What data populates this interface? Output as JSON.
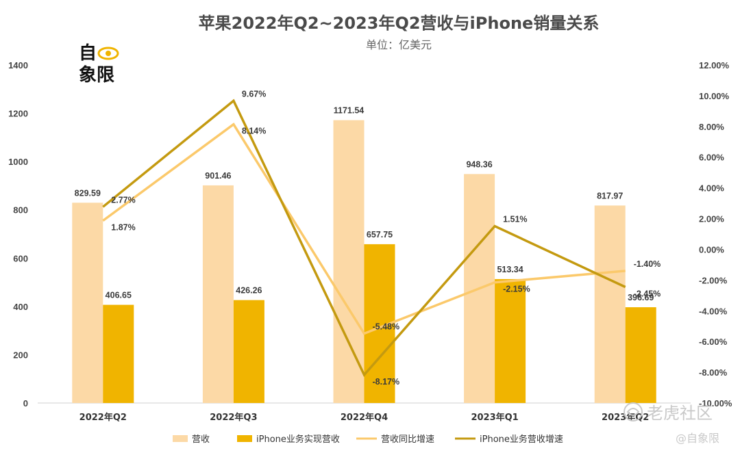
{
  "chart_data": {
    "type": "bar",
    "title": "苹果2022年Q2~2023年Q2营收与iPhone销量关系",
    "subtitle": "单位：亿美元",
    "categories": [
      "2022年Q2",
      "2022年Q3",
      "2022年Q4",
      "2023年Q1",
      "2023年Q2"
    ],
    "series": [
      {
        "name": "营收",
        "kind": "bar",
        "axis": "left",
        "color": "#fcd9a6",
        "values": [
          829.59,
          901.46,
          1171.54,
          948.36,
          817.97
        ],
        "labels": [
          "829.59",
          "901.46",
          "1171.54",
          "948.36",
          "817.97"
        ]
      },
      {
        "name": "iPhone业务实现营收",
        "kind": "bar",
        "axis": "left",
        "color": "#f0b400",
        "values": [
          406.65,
          426.26,
          657.75,
          513.34,
          396.69
        ],
        "labels": [
          "406.65",
          "426.26",
          "657.75",
          "513.34",
          "396.69"
        ]
      },
      {
        "name": "营收同比增速",
        "kind": "line",
        "axis": "right",
        "color": "#fbc96b",
        "values": [
          1.87,
          8.14,
          -5.48,
          -2.15,
          -1.4
        ],
        "labels": [
          "1.87%",
          "8.14%",
          "-5.48%",
          "-2.15%",
          "-1.40%"
        ]
      },
      {
        "name": "iPhone业务营收增速",
        "kind": "line",
        "axis": "right",
        "color": "#c49a10",
        "values": [
          2.77,
          9.67,
          -8.17,
          1.51,
          -2.45
        ],
        "labels": [
          "2.77%",
          "9.67%",
          "-8.17%",
          "1.51%",
          "-2.45%"
        ]
      }
    ],
    "y_left": {
      "min": 0,
      "max": 1400,
      "step": 200,
      "ticks": [
        "0",
        "200",
        "400",
        "600",
        "800",
        "1000",
        "1200",
        "1400"
      ]
    },
    "y_right": {
      "min": -10,
      "max": 12,
      "step": 2,
      "ticks": [
        "-10.00%",
        "-8.00%",
        "-6.00%",
        "-4.00%",
        "-2.00%",
        "0.00%",
        "2.00%",
        "4.00%",
        "6.00%",
        "8.00%",
        "10.00%",
        "12.00%"
      ]
    },
    "legend_position": "bottom",
    "grid": false
  },
  "logo": {
    "line1": "自",
    "line2": "象限",
    "icon": "eye-icon"
  },
  "watermark": {
    "main": "老虎社区",
    "sub": "@自象限",
    "icon": "tiger-logo-icon"
  }
}
